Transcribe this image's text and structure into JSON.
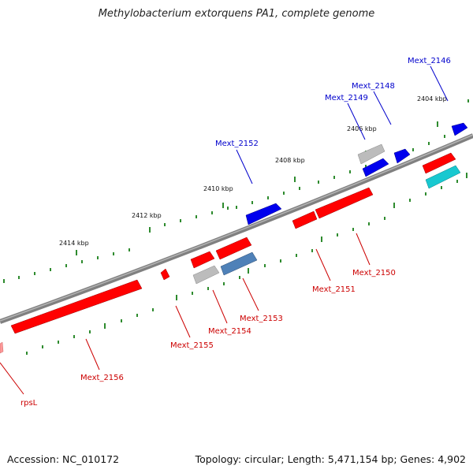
{
  "title": "Methylobacterium extorquens PA1, complete genome",
  "footer": {
    "accession": "Accession: NC_010172",
    "summary": "Topology: circular; Length: 5,471,154 bp; Genes: 4,902"
  },
  "colors": {
    "backbone": "#808080",
    "tick_outer": "#2e8b2e",
    "tick_inner": "#2e8b2e",
    "label_red": "#cc0000",
    "label_blue": "#0000cc",
    "kbp_text": "#111111",
    "gene_red": "#ff0000",
    "gene_blue": "#0000ee",
    "gene_gray": "#b8b8b8",
    "gene_steel": "#4f81b8",
    "gene_cyan": "#18c8d0"
  },
  "scale_labels": [
    "2404 kbp",
    "2406 kbp",
    "2408 kbp",
    "2410 kbp",
    "2412 kbp",
    "2414 kbp"
  ],
  "gene_labels": [
    {
      "text": "Mext_2146",
      "strand": "plus"
    },
    {
      "text": "Mext_2148",
      "strand": "plus"
    },
    {
      "text": "Mext_2149",
      "strand": "plus"
    },
    {
      "text": "Mext_2152",
      "strand": "plus"
    },
    {
      "text": "Mext_2150",
      "strand": "minus"
    },
    {
      "text": "Mext_2151",
      "strand": "minus"
    },
    {
      "text": "Mext_2153",
      "strand": "minus"
    },
    {
      "text": "Mext_2154",
      "strand": "minus"
    },
    {
      "text": "Mext_2155",
      "strand": "minus"
    },
    {
      "text": "Mext_2156",
      "strand": "minus"
    },
    {
      "text": "rpsL",
      "strand": "minus"
    }
  ]
}
